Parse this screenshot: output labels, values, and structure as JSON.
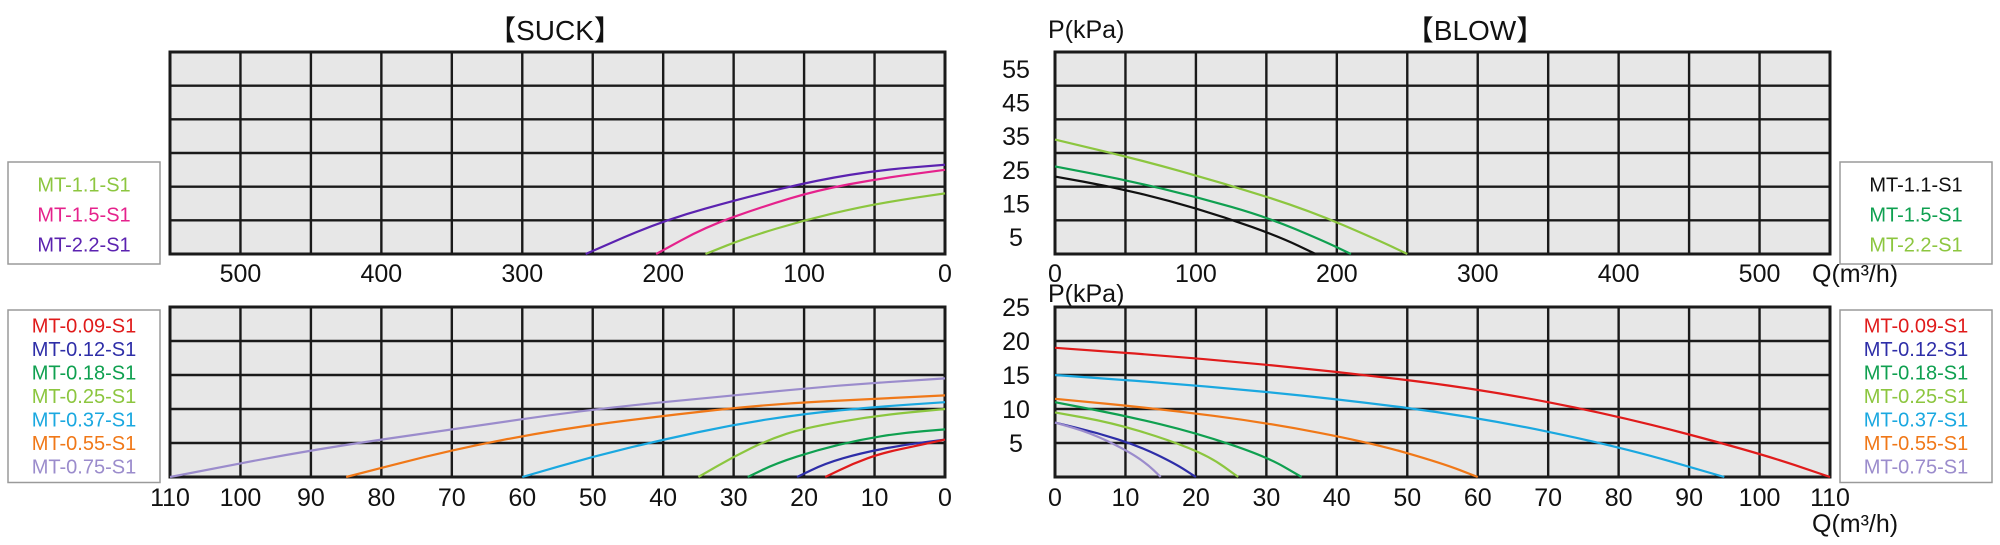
{
  "titles": {
    "suck": "【SUCK】",
    "blow": "【BLOW】"
  },
  "labels": {
    "pressure_top": "P(kPa)",
    "pressure_bottom": "P(kPa)",
    "flow_top": "Q(m³/h)",
    "flow_bottom": "Q(m³/h)"
  },
  "legends": {
    "top_left": [
      {
        "label": "MT-1.1-S1",
        "color": "#8cc63f"
      },
      {
        "label": "MT-1.5-S1",
        "color": "#e5228c"
      },
      {
        "label": "MT-2.2-S1",
        "color": "#5b22b0"
      }
    ],
    "top_right": [
      {
        "label": "MT-1.1-S1",
        "color": "#111111"
      },
      {
        "label": "MT-1.5-S1",
        "color": "#0fa050"
      },
      {
        "label": "MT-2.2-S1",
        "color": "#8cc63f"
      }
    ],
    "bottom_left": [
      {
        "label": "MT-0.09-S1",
        "color": "#e01b1b"
      },
      {
        "label": "MT-0.12-S1",
        "color": "#2e2ea8"
      },
      {
        "label": "MT-0.18-S1",
        "color": "#0fa050"
      },
      {
        "label": "MT-0.25-S1",
        "color": "#8cc63f"
      },
      {
        "label": "MT-0.37-S1",
        "color": "#1aa8e0"
      },
      {
        "label": "MT-0.55-S1",
        "color": "#f07818"
      },
      {
        "label": "MT-0.75-S1",
        "color": "#9b8ccc"
      }
    ],
    "bottom_right": [
      {
        "label": "MT-0.09-S1",
        "color": "#e01b1b"
      },
      {
        "label": "MT-0.12-S1",
        "color": "#2e2ea8"
      },
      {
        "label": "MT-0.18-S1",
        "color": "#0fa050"
      },
      {
        "label": "MT-0.25-S1",
        "color": "#8cc63f"
      },
      {
        "label": "MT-0.37-S1",
        "color": "#1aa8e0"
      },
      {
        "label": "MT-0.55-S1",
        "color": "#f07818"
      },
      {
        "label": "MT-0.75-S1",
        "color": "#9b8ccc"
      }
    ]
  },
  "chart_data": [
    {
      "id": "suck_top",
      "type": "line",
      "title": "【SUCK】",
      "xlim": [
        550,
        0
      ],
      "ylim": [
        0,
        60
      ],
      "xticks": [
        500,
        400,
        300,
        200,
        100,
        0
      ],
      "yticks": [],
      "grid_x": 11,
      "grid_y": 6,
      "series": [
        {
          "name": "MT-2.2-S1",
          "color": "#5b22b0",
          "points": [
            [
              255,
              0
            ],
            [
              200,
              10
            ],
            [
              140,
              17
            ],
            [
              90,
              22
            ],
            [
              45,
              25
            ],
            [
              0,
              26.5
            ]
          ]
        },
        {
          "name": "MT-1.5-S1",
          "color": "#e5228c",
          "points": [
            [
              205,
              0
            ],
            [
              170,
              8
            ],
            [
              130,
              14
            ],
            [
              90,
              19
            ],
            [
              45,
              22.5
            ],
            [
              0,
              25
            ]
          ]
        },
        {
          "name": "MT-1.1-S1",
          "color": "#8cc63f",
          "points": [
            [
              170,
              0
            ],
            [
              140,
              5
            ],
            [
              100,
              10
            ],
            [
              60,
              14
            ],
            [
              25,
              16.5
            ],
            [
              0,
              18
            ]
          ]
        }
      ]
    },
    {
      "id": "blow_top",
      "type": "line",
      "title": "【BLOW】",
      "xlim": [
        0,
        550
      ],
      "ylim": [
        0,
        60
      ],
      "xticks": [
        0,
        100,
        200,
        300,
        400,
        500
      ],
      "yticks": [
        55,
        45,
        35,
        25,
        15,
        5
      ],
      "xlabel": "Q(m³/h)",
      "ylabel": "P(kPa)",
      "grid_x": 11,
      "grid_y": 6,
      "series": [
        {
          "name": "MT-1.1-S1",
          "color": "#111111",
          "points": [
            [
              0,
              23
            ],
            [
              40,
              20
            ],
            [
              80,
              16
            ],
            [
              120,
              11
            ],
            [
              160,
              5
            ],
            [
              185,
              0
            ]
          ]
        },
        {
          "name": "MT-1.5-S1",
          "color": "#0fa050",
          "points": [
            [
              0,
              26
            ],
            [
              50,
              22
            ],
            [
              100,
              17
            ],
            [
              150,
              11
            ],
            [
              190,
              4
            ],
            [
              210,
              0
            ]
          ]
        },
        {
          "name": "MT-2.2-S1",
          "color": "#8cc63f",
          "points": [
            [
              0,
              34
            ],
            [
              60,
              28
            ],
            [
              120,
              21
            ],
            [
              180,
              13
            ],
            [
              230,
              4
            ],
            [
              250,
              0
            ]
          ]
        }
      ]
    },
    {
      "id": "suck_bottom",
      "type": "line",
      "xlim": [
        110,
        0
      ],
      "ylim": [
        0,
        25
      ],
      "xticks": [
        110,
        100,
        90,
        80,
        70,
        60,
        50,
        40,
        30,
        20,
        10,
        0
      ],
      "yticks": [],
      "grid_x": 11,
      "grid_y": 5,
      "series": [
        {
          "name": "MT-0.75-S1",
          "color": "#9b8ccc",
          "points": [
            [
              110,
              0
            ],
            [
              90,
              4
            ],
            [
              70,
              7
            ],
            [
              50,
              10
            ],
            [
              30,
              12
            ],
            [
              15,
              13.5
            ],
            [
              0,
              14.5
            ]
          ]
        },
        {
          "name": "MT-0.55-S1",
          "color": "#f07818",
          "points": [
            [
              85,
              0
            ],
            [
              70,
              4
            ],
            [
              55,
              7
            ],
            [
              40,
              9
            ],
            [
              25,
              10.7
            ],
            [
              10,
              11.5
            ],
            [
              0,
              12
            ]
          ]
        },
        {
          "name": "MT-0.37-S1",
          "color": "#1aa8e0",
          "points": [
            [
              60,
              0
            ],
            [
              50,
              3
            ],
            [
              40,
              5.5
            ],
            [
              30,
              7.7
            ],
            [
              20,
              9.3
            ],
            [
              10,
              10.3
            ],
            [
              0,
              11
            ]
          ]
        },
        {
          "name": "MT-0.25-S1",
          "color": "#8cc63f",
          "points": [
            [
              35,
              0
            ],
            [
              30,
              3
            ],
            [
              25,
              5.5
            ],
            [
              20,
              7.2
            ],
            [
              10,
              9
            ],
            [
              0,
              10
            ]
          ]
        },
        {
          "name": "MT-0.18-S1",
          "color": "#0fa050",
          "points": [
            [
              28,
              0
            ],
            [
              24,
              2
            ],
            [
              18,
              4
            ],
            [
              12,
              5.5
            ],
            [
              6,
              6.5
            ],
            [
              0,
              7
            ]
          ]
        },
        {
          "name": "MT-0.12-S1",
          "color": "#2e2ea8",
          "points": [
            [
              21,
              0
            ],
            [
              17,
              2
            ],
            [
              12,
              3.5
            ],
            [
              6,
              4.7
            ],
            [
              0,
              5.5
            ]
          ]
        },
        {
          "name": "MT-0.09-S1",
          "color": "#e01b1b",
          "points": [
            [
              17,
              0
            ],
            [
              13,
              2
            ],
            [
              9,
              3.5
            ],
            [
              4,
              4.6
            ],
            [
              0,
              5.5
            ]
          ]
        }
      ]
    },
    {
      "id": "blow_bottom",
      "type": "line",
      "xlim": [
        0,
        110
      ],
      "ylim": [
        0,
        25
      ],
      "xticks": [
        0,
        10,
        20,
        30,
        40,
        50,
        60,
        70,
        80,
        90,
        100,
        110
      ],
      "yticks": [
        25,
        20,
        15,
        10,
        5
      ],
      "xlabel": "Q(m³/h)",
      "ylabel": "P(kPa)",
      "grid_x": 11,
      "grid_y": 5,
      "series": [
        {
          "name": "MT-0.09-S1",
          "color": "#e01b1b",
          "points": [
            [
              0,
              19
            ],
            [
              20,
              17.5
            ],
            [
              40,
              15.5
            ],
            [
              60,
              13
            ],
            [
              80,
              9
            ],
            [
              100,
              3.5
            ],
            [
              110,
              0
            ]
          ]
        },
        {
          "name": "MT-0.37-S1",
          "color": "#1aa8e0",
          "points": [
            [
              0,
              15
            ],
            [
              20,
              13.5
            ],
            [
              40,
              11.5
            ],
            [
              60,
              8.8
            ],
            [
              80,
              4.5
            ],
            [
              95,
              0
            ]
          ]
        },
        {
          "name": "MT-0.55-S1",
          "color": "#f07818",
          "points": [
            [
              0,
              11.5
            ],
            [
              15,
              10
            ],
            [
              30,
              8
            ],
            [
              45,
              5
            ],
            [
              55,
              2
            ],
            [
              60,
              0
            ]
          ]
        },
        {
          "name": "MT-0.18-S1",
          "color": "#0fa050",
          "points": [
            [
              0,
              11
            ],
            [
              10,
              9
            ],
            [
              20,
              6.5
            ],
            [
              30,
              3
            ],
            [
              35,
              0
            ]
          ]
        },
        {
          "name": "MT-0.25-S1",
          "color": "#8cc63f",
          "points": [
            [
              0,
              9.5
            ],
            [
              8,
              8
            ],
            [
              16,
              5.5
            ],
            [
              22,
              3
            ],
            [
              26,
              0
            ]
          ]
        },
        {
          "name": "MT-0.12-S1",
          "color": "#2e2ea8",
          "points": [
            [
              0,
              8
            ],
            [
              6,
              6.5
            ],
            [
              12,
              4.5
            ],
            [
              17,
              2
            ],
            [
              20,
              0
            ]
          ]
        },
        {
          "name": "MT-0.75-S1",
          "color": "#9b8ccc",
          "points": [
            [
              0,
              8
            ],
            [
              5,
              6.5
            ],
            [
              10,
              4
            ],
            [
              13,
              2
            ],
            [
              15,
              0
            ]
          ]
        }
      ]
    }
  ]
}
